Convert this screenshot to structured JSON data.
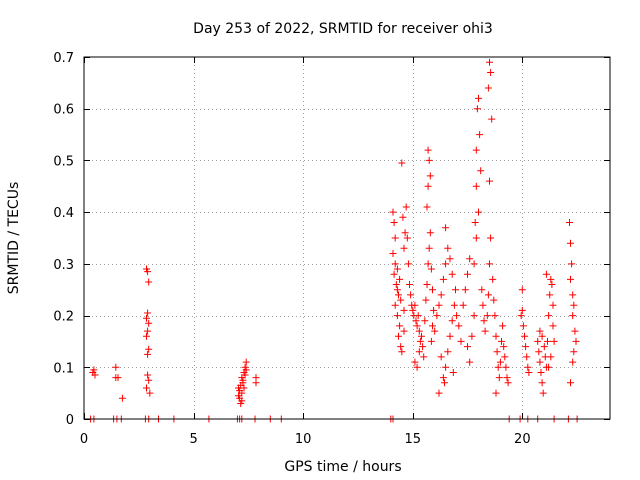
{
  "chart_data": {
    "type": "scatter",
    "title": "Day 253 of 2022, SRMTID for receiver ohi3",
    "xlabel": "GPS time / hours",
    "ylabel": "SRMTID / TECUs",
    "xlim": [
      0,
      24
    ],
    "ylim": [
      0,
      0.7
    ],
    "xticks": [
      0,
      5,
      10,
      15,
      20
    ],
    "xtick_labels": [
      "0",
      "5",
      "10",
      "15",
      "20"
    ],
    "yticks": [
      0,
      0.1,
      0.2,
      0.3,
      0.4,
      0.5,
      0.6,
      0.7
    ],
    "ytick_labels": [
      "0",
      "0.1",
      "0.2",
      "0.3",
      "0.4",
      "0.5",
      "0.6",
      "0.7"
    ],
    "grid": true,
    "marker": "+",
    "color": "#ff0000",
    "series": [
      {
        "name": "SRMTID",
        "points": [
          [
            0.3,
            0
          ],
          [
            0.45,
            0
          ],
          [
            0.4,
            0.09
          ],
          [
            0.45,
            0.095
          ],
          [
            0.5,
            0.085
          ],
          [
            1.35,
            0
          ],
          [
            1.5,
            0
          ],
          [
            1.45,
            0.1
          ],
          [
            1.45,
            0.08
          ],
          [
            1.55,
            0.08
          ],
          [
            1.7,
            0
          ],
          [
            1.75,
            0.04
          ],
          [
            2.8,
            0
          ],
          [
            2.95,
            0
          ],
          [
            2.85,
            0.29
          ],
          [
            2.9,
            0.285
          ],
          [
            2.95,
            0.265
          ],
          [
            2.9,
            0.205
          ],
          [
            2.85,
            0.195
          ],
          [
            2.95,
            0.185
          ],
          [
            2.9,
            0.17
          ],
          [
            2.85,
            0.16
          ],
          [
            2.95,
            0.135
          ],
          [
            2.9,
            0.125
          ],
          [
            2.9,
            0.085
          ],
          [
            2.95,
            0.075
          ],
          [
            2.85,
            0.06
          ],
          [
            3.0,
            0.05
          ],
          [
            3.4,
            0
          ],
          [
            4.1,
            0
          ],
          [
            5.7,
            0
          ],
          [
            7.0,
            0
          ],
          [
            7.1,
            0
          ],
          [
            7.2,
            0
          ],
          [
            7.05,
            0.045
          ],
          [
            7.1,
            0.055
          ],
          [
            7.15,
            0.065
          ],
          [
            7.2,
            0.05
          ],
          [
            7.25,
            0.07
          ],
          [
            7.1,
            0.04
          ],
          [
            7.2,
            0.08
          ],
          [
            7.3,
            0.09
          ],
          [
            7.35,
            0.1
          ],
          [
            7.4,
            0.11
          ],
          [
            7.15,
            0.03
          ],
          [
            7.3,
            0.06
          ],
          [
            7.25,
            0.075
          ],
          [
            7.35,
            0.085
          ],
          [
            7.05,
            0.06
          ],
          [
            7.2,
            0.035
          ],
          [
            7.4,
            0.095
          ],
          [
            7.8,
            0
          ],
          [
            7.85,
            0.08
          ],
          [
            7.85,
            0.07
          ],
          [
            8.5,
            0
          ],
          [
            9.0,
            0
          ],
          [
            14.0,
            0
          ],
          [
            14.1,
            0
          ],
          [
            14.1,
            0.4
          ],
          [
            14.15,
            0.38
          ],
          [
            14.2,
            0.35
          ],
          [
            14.1,
            0.32
          ],
          [
            14.2,
            0.3
          ],
          [
            14.15,
            0.28
          ],
          [
            14.25,
            0.26
          ],
          [
            14.3,
            0.25
          ],
          [
            14.35,
            0.24
          ],
          [
            14.4,
            0.27
          ],
          [
            14.3,
            0.29
          ],
          [
            14.45,
            0.23
          ],
          [
            14.2,
            0.22
          ],
          [
            14.3,
            0.2
          ],
          [
            14.4,
            0.18
          ],
          [
            14.35,
            0.16
          ],
          [
            14.45,
            0.14
          ],
          [
            14.5,
            0.13
          ],
          [
            14.6,
            0.17
          ],
          [
            14.6,
            0.21
          ],
          [
            14.6,
            0.33
          ],
          [
            14.65,
            0.36
          ],
          [
            14.55,
            0.39
          ],
          [
            14.7,
            0.41
          ],
          [
            14.75,
            0.35
          ],
          [
            14.8,
            0.3
          ],
          [
            14.85,
            0.26
          ],
          [
            14.9,
            0.24
          ],
          [
            14.95,
            0.22
          ],
          [
            14.5,
            0.495
          ],
          [
            15.0,
            0.21
          ],
          [
            15.05,
            0.2
          ],
          [
            15.1,
            0.22
          ],
          [
            15.15,
            0.19
          ],
          [
            15.2,
            0.18
          ],
          [
            15.25,
            0.2
          ],
          [
            15.3,
            0.17
          ],
          [
            15.35,
            0.15
          ],
          [
            15.4,
            0.16
          ],
          [
            15.45,
            0.14
          ],
          [
            15.5,
            0.12
          ],
          [
            15.2,
            0.1
          ],
          [
            15.1,
            0.11
          ],
          [
            15.3,
            0.13
          ],
          [
            15.55,
            0.19
          ],
          [
            15.6,
            0.23
          ],
          [
            15.65,
            0.26
          ],
          [
            15.7,
            0.3
          ],
          [
            15.75,
            0.33
          ],
          [
            15.8,
            0.36
          ],
          [
            15.65,
            0.41
          ],
          [
            15.7,
            0.52
          ],
          [
            15.75,
            0.5
          ],
          [
            15.8,
            0.47
          ],
          [
            15.7,
            0.45
          ],
          [
            15.85,
            0.29
          ],
          [
            15.9,
            0.25
          ],
          [
            15.95,
            0.21
          ],
          [
            15.9,
            0.18
          ],
          [
            15.85,
            0.15
          ],
          [
            16.0,
            0.17
          ],
          [
            16.1,
            0.2
          ],
          [
            16.2,
            0.22
          ],
          [
            16.3,
            0.24
          ],
          [
            16.4,
            0.27
          ],
          [
            16.5,
            0.3
          ],
          [
            16.6,
            0.33
          ],
          [
            16.5,
            0.37
          ],
          [
            16.3,
            0.12
          ],
          [
            16.4,
            0.08
          ],
          [
            16.45,
            0.07
          ],
          [
            16.5,
            0.1
          ],
          [
            16.6,
            0.13
          ],
          [
            16.7,
            0.16
          ],
          [
            16.8,
            0.19
          ],
          [
            16.9,
            0.22
          ],
          [
            16.95,
            0.25
          ],
          [
            16.8,
            0.28
          ],
          [
            16.7,
            0.31
          ],
          [
            16.85,
            0.09
          ],
          [
            16.2,
            0.05
          ],
          [
            17.0,
            0.2
          ],
          [
            17.1,
            0.18
          ],
          [
            17.2,
            0.15
          ],
          [
            17.3,
            0.22
          ],
          [
            17.4,
            0.25
          ],
          [
            17.5,
            0.28
          ],
          [
            17.6,
            0.31
          ],
          [
            17.5,
            0.14
          ],
          [
            17.6,
            0.11
          ],
          [
            17.7,
            0.16
          ],
          [
            17.8,
            0.2
          ],
          [
            17.85,
            0.38
          ],
          [
            17.9,
            0.45
          ],
          [
            17.95,
            0.6
          ],
          [
            18.0,
            0.62
          ],
          [
            18.05,
            0.55
          ],
          [
            17.9,
            0.52
          ],
          [
            18.1,
            0.48
          ],
          [
            18.0,
            0.4
          ],
          [
            17.9,
            0.35
          ],
          [
            17.8,
            0.3
          ],
          [
            18.15,
            0.25
          ],
          [
            18.2,
            0.22
          ],
          [
            18.25,
            0.19
          ],
          [
            18.3,
            0.17
          ],
          [
            18.4,
            0.2
          ],
          [
            18.45,
            0.24
          ],
          [
            18.5,
            0.3
          ],
          [
            18.55,
            0.35
          ],
          [
            18.45,
            0.64
          ],
          [
            18.5,
            0.69
          ],
          [
            18.55,
            0.67
          ],
          [
            18.6,
            0.58
          ],
          [
            18.5,
            0.46
          ],
          [
            18.65,
            0.27
          ],
          [
            18.7,
            0.23
          ],
          [
            18.75,
            0.2
          ],
          [
            18.8,
            0.16
          ],
          [
            18.85,
            0.13
          ],
          [
            18.9,
            0.1
          ],
          [
            18.95,
            0.08
          ],
          [
            18.8,
            0.05
          ],
          [
            19.0,
            0.11
          ],
          [
            19.05,
            0.15
          ],
          [
            19.1,
            0.18
          ],
          [
            19.15,
            0.14
          ],
          [
            19.2,
            0.12
          ],
          [
            19.25,
            0.1
          ],
          [
            19.3,
            0.08
          ],
          [
            19.35,
            0.07
          ],
          [
            19.4,
            0
          ],
          [
            19.9,
            0
          ],
          [
            19.95,
            0.2
          ],
          [
            20.0,
            0.21
          ],
          [
            20.05,
            0.18
          ],
          [
            20.1,
            0.16
          ],
          [
            20.15,
            0.14
          ],
          [
            20.2,
            0.12
          ],
          [
            20.25,
            0.1
          ],
          [
            20.0,
            0.25
          ],
          [
            20.3,
            0.09
          ],
          [
            20.25,
            0
          ],
          [
            20.7,
            0
          ],
          [
            20.7,
            0.15
          ],
          [
            20.75,
            0.13
          ],
          [
            20.8,
            0.11
          ],
          [
            20.85,
            0.09
          ],
          [
            20.9,
            0.07
          ],
          [
            20.95,
            0.05
          ],
          [
            20.8,
            0.17
          ],
          [
            20.9,
            0.16
          ],
          [
            21.0,
            0.14
          ],
          [
            21.05,
            0.12
          ],
          [
            21.1,
            0.1
          ],
          [
            21.15,
            0.15
          ],
          [
            21.2,
            0.2
          ],
          [
            21.25,
            0.24
          ],
          [
            21.3,
            0.27
          ],
          [
            21.35,
            0.26
          ],
          [
            21.4,
            0.22
          ],
          [
            21.4,
            0.18
          ],
          [
            21.45,
            0.15
          ],
          [
            21.3,
            0.12
          ],
          [
            21.2,
            0.1
          ],
          [
            21.1,
            0.28
          ],
          [
            21.45,
            0
          ],
          [
            22.1,
            0
          ],
          [
            22.15,
            0.38
          ],
          [
            22.2,
            0.34
          ],
          [
            22.25,
            0.3
          ],
          [
            22.2,
            0.27
          ],
          [
            22.3,
            0.24
          ],
          [
            22.35,
            0.22
          ],
          [
            22.3,
            0.2
          ],
          [
            22.4,
            0.17
          ],
          [
            22.45,
            0.15
          ],
          [
            22.35,
            0.13
          ],
          [
            22.3,
            0.11
          ],
          [
            22.2,
            0.07
          ],
          [
            22.5,
            0
          ]
        ]
      }
    ]
  }
}
